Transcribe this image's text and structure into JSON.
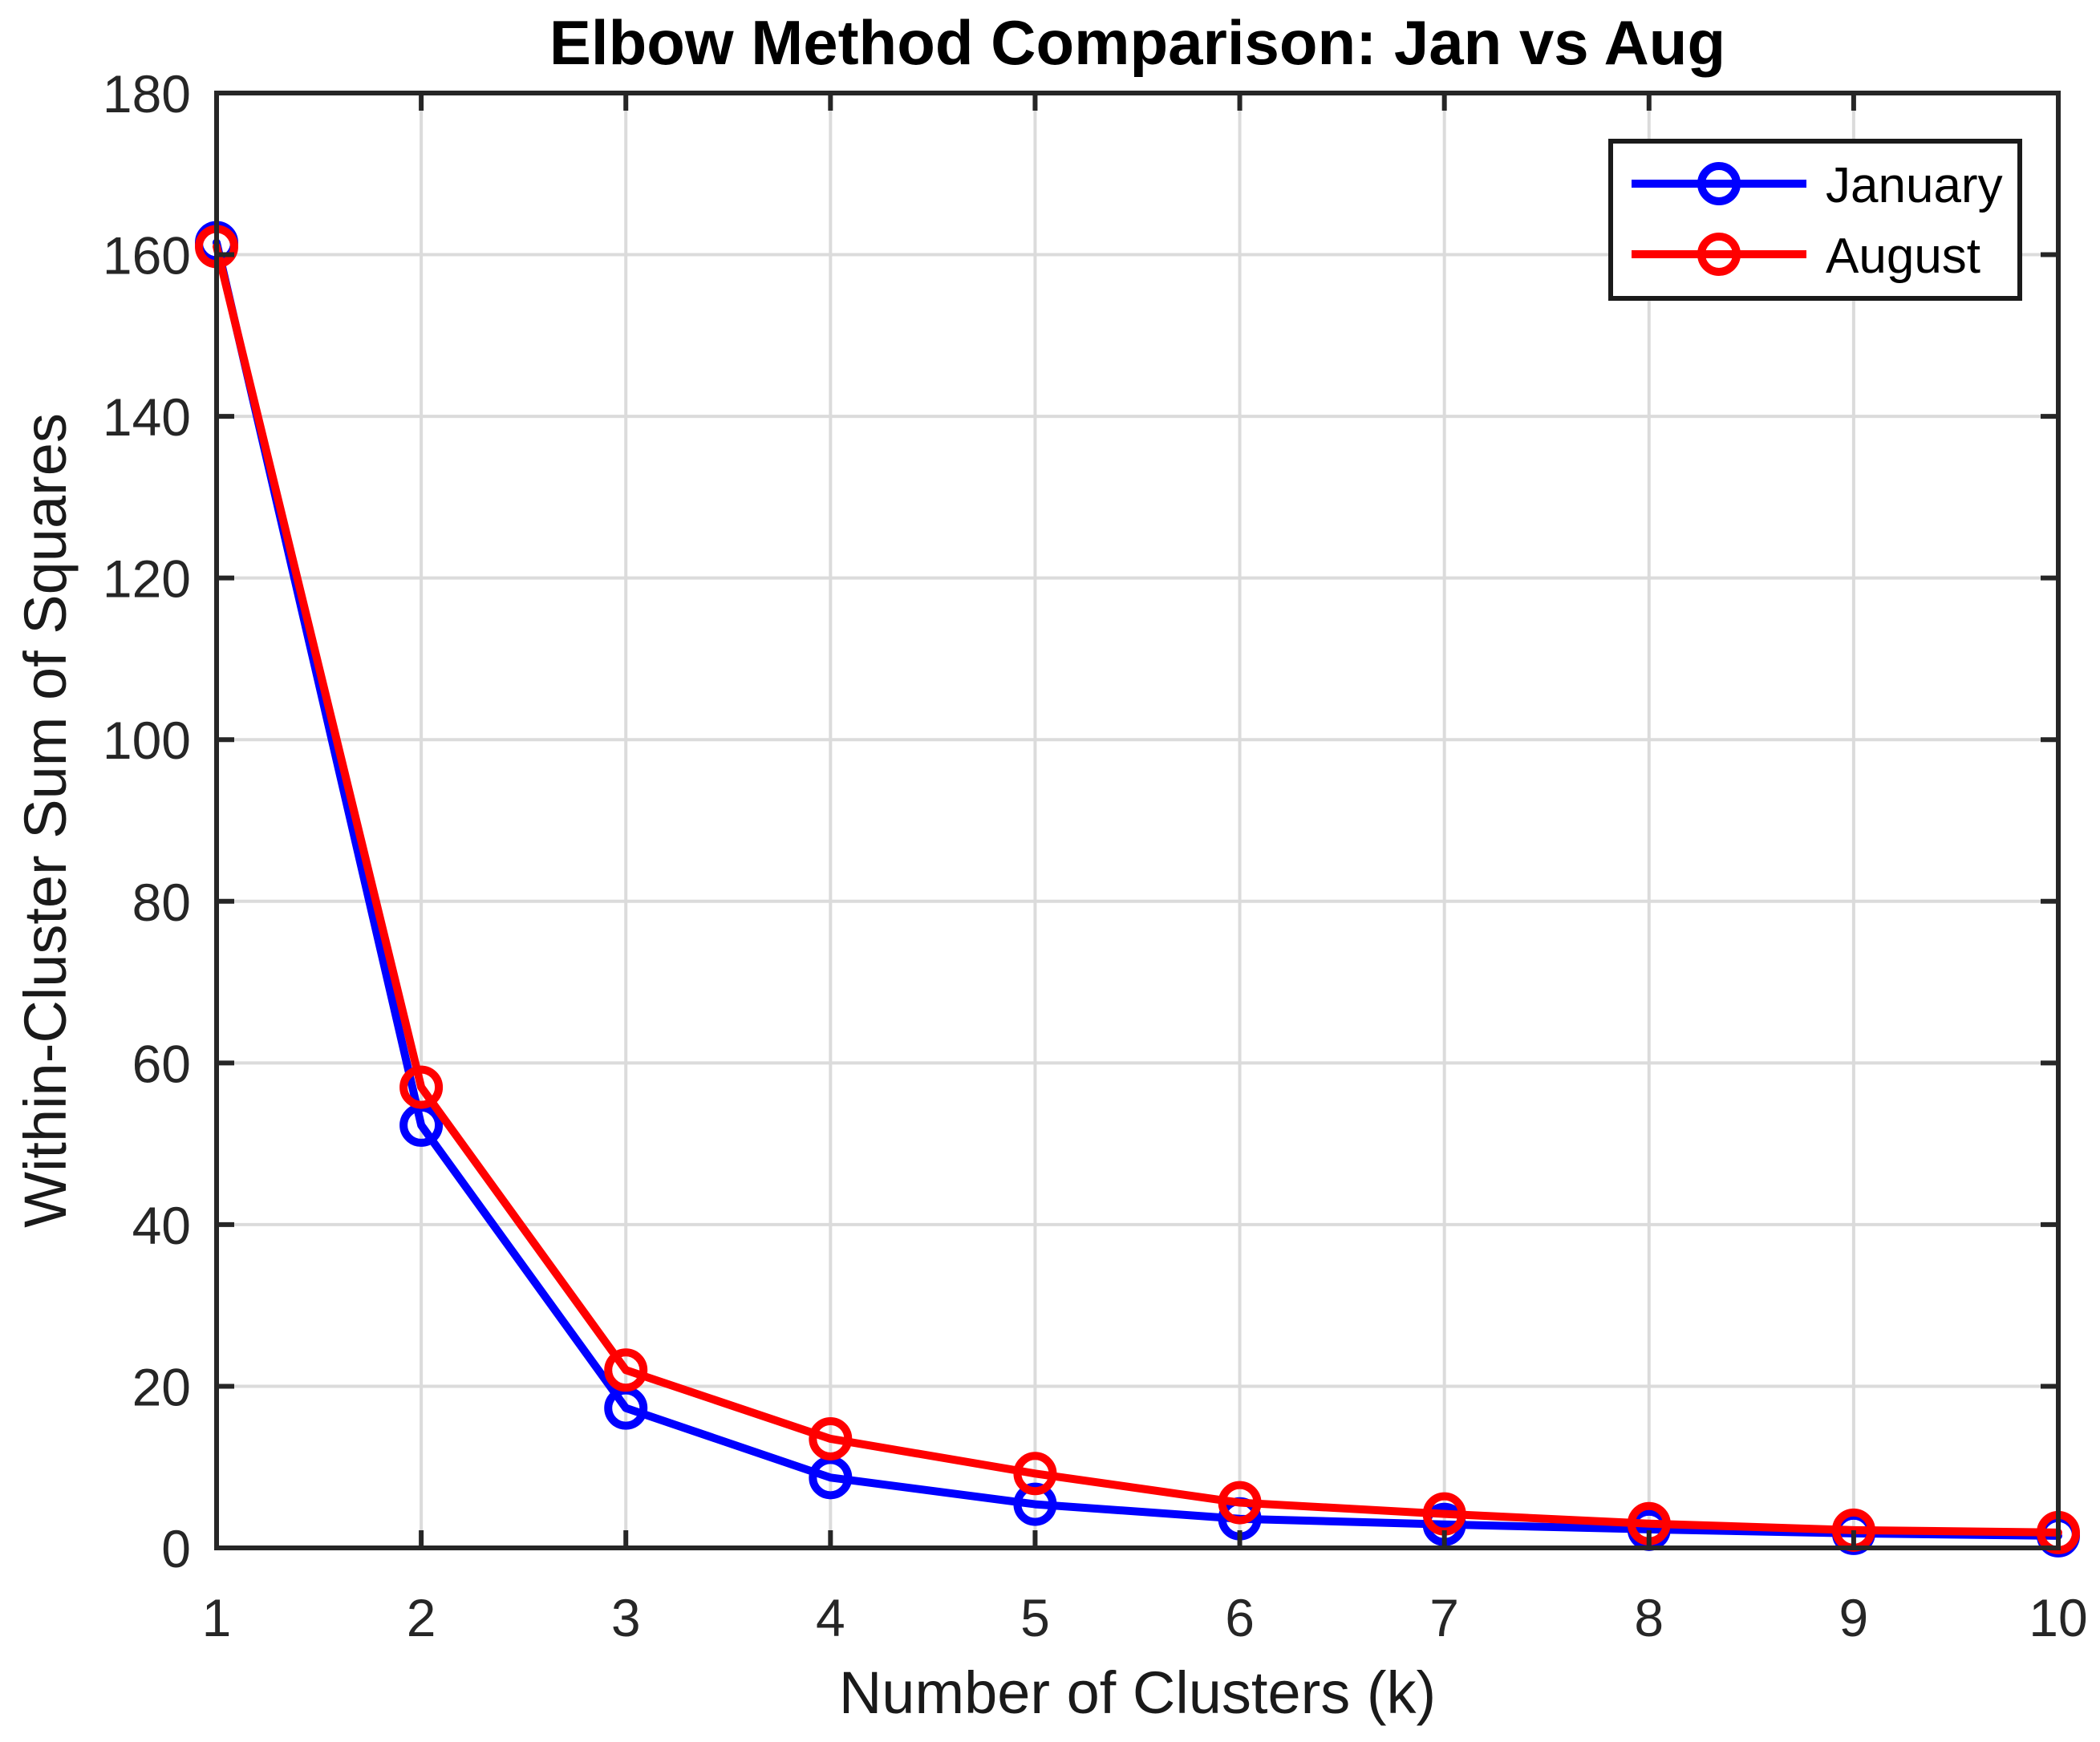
{
  "figure": {
    "background": "#FFFFFF"
  },
  "style": {
    "grid_color": "#DBDBDB",
    "axis_color": "#262626",
    "text_color": "#262626",
    "line_width": 10,
    "marker_radius": 22,
    "legend_border_color": "#1A1A1A"
  },
  "chart_data": {
    "type": "line",
    "title": "Elbow Method Comparison: Jan vs Aug",
    "xlabel": "Number of Clusters (k)",
    "ylabel": "Within-Cluster Sum of Squares",
    "x": [
      1,
      2,
      3,
      4,
      5,
      6,
      7,
      8,
      9,
      10
    ],
    "series": [
      {
        "name": "January",
        "color": "#0000FF",
        "marker": "open-circle",
        "values": [
          161.5,
          52.3,
          17.3,
          8.7,
          5.4,
          3.6,
          2.9,
          2.3,
          1.8,
          1.5
        ]
      },
      {
        "name": "August",
        "color": "#FF0000",
        "marker": "open-circle",
        "values": [
          161.0,
          57.0,
          22.0,
          13.5,
          9.2,
          5.6,
          4.2,
          3.0,
          2.2,
          1.9
        ]
      }
    ],
    "xlim": [
      1,
      10
    ],
    "ylim": [
      0,
      180
    ],
    "xticks": [
      1,
      2,
      3,
      4,
      5,
      6,
      7,
      8,
      9,
      10
    ],
    "yticks": [
      0,
      20,
      40,
      60,
      80,
      100,
      120,
      140,
      160,
      180
    ],
    "grid": true,
    "box": true,
    "legend": {
      "position": "top-right",
      "entries": [
        "January",
        "August"
      ]
    }
  }
}
